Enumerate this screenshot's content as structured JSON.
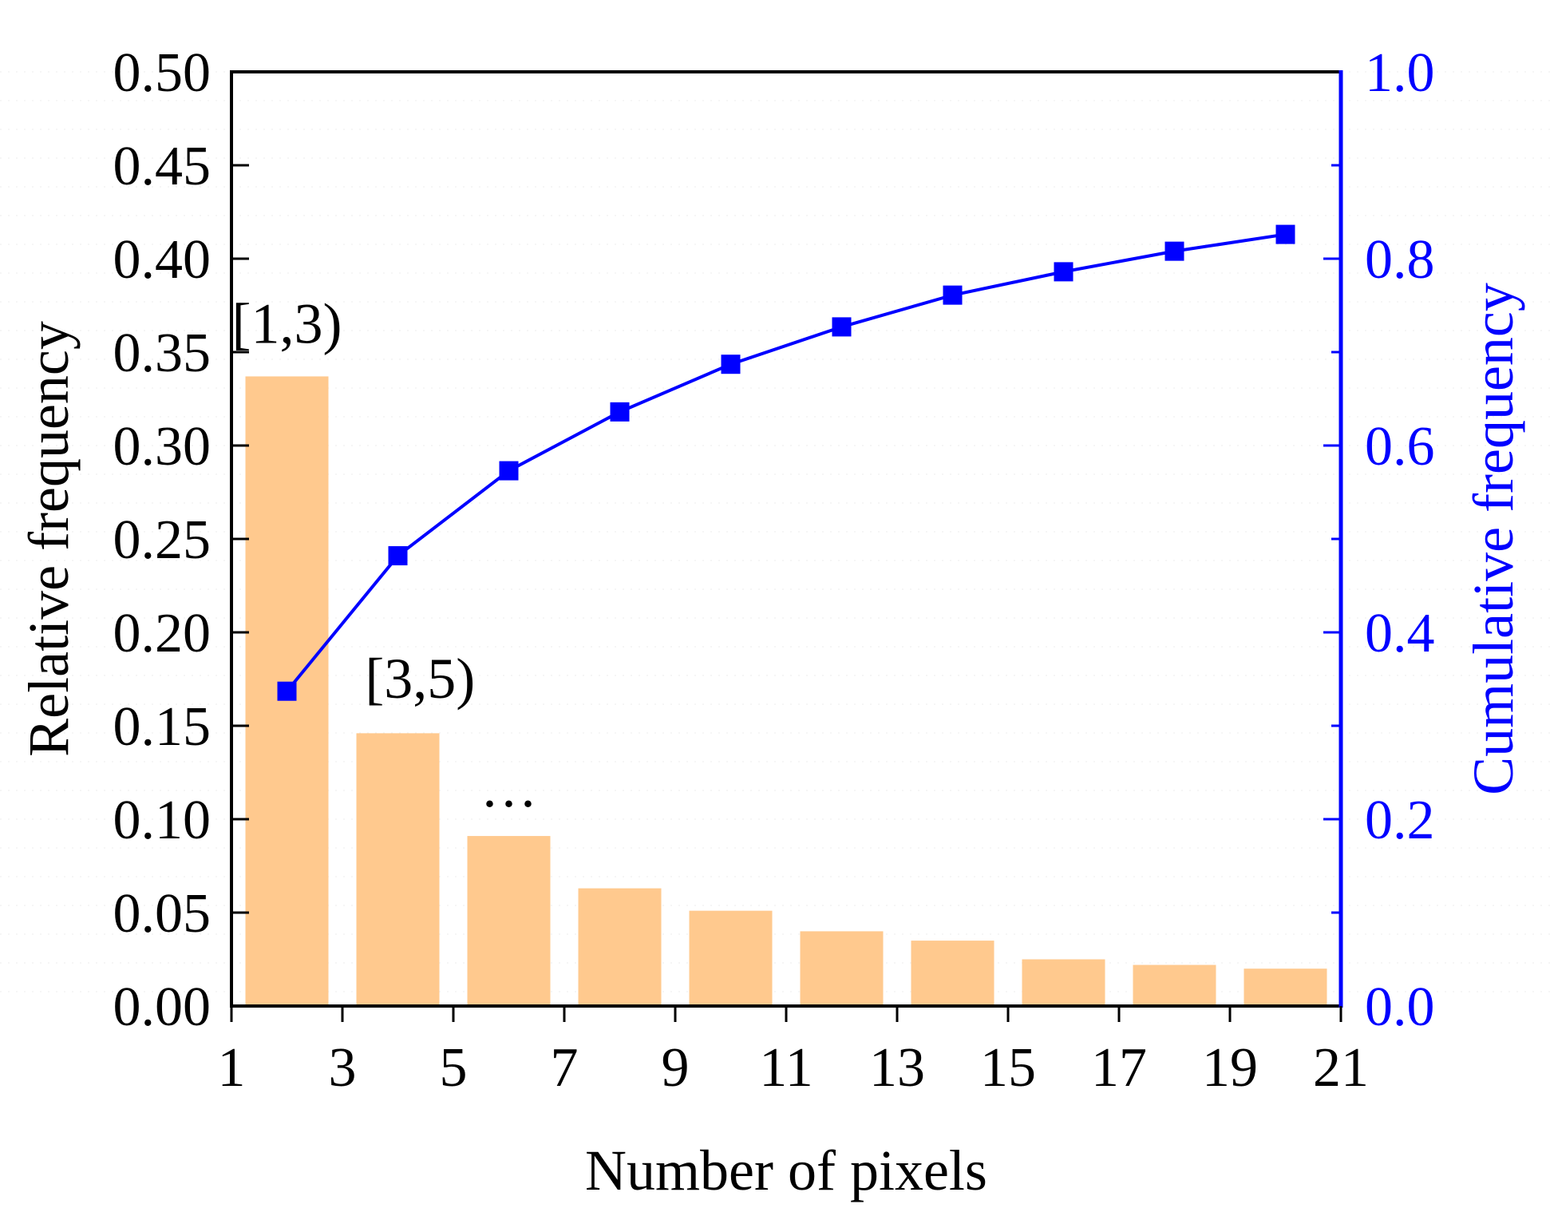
{
  "chart_data": {
    "type": "bar+line",
    "xlabel": "Number of pixels",
    "ylabel": "Relative frequency",
    "y2label": "Cumulative frequency",
    "xlim": [
      1,
      21
    ],
    "ylim": [
      0,
      0.5
    ],
    "y2lim": [
      0,
      1.0
    ],
    "xticks": [
      "1",
      "3",
      "5",
      "7",
      "9",
      "11",
      "13",
      "15",
      "17",
      "19",
      "21"
    ],
    "yticks": [
      "0.00",
      "0.05",
      "0.10",
      "0.15",
      "0.20",
      "0.25",
      "0.30",
      "0.35",
      "0.40",
      "0.45",
      "0.50"
    ],
    "y2ticks": [
      "0.0",
      "0.2",
      "0.4",
      "0.6",
      "0.8",
      "1.0"
    ],
    "bars": {
      "name": "Relative frequency",
      "x": [
        2,
        4,
        6,
        8,
        10,
        12,
        14,
        16,
        18,
        20
      ],
      "values": [
        0.337,
        0.146,
        0.091,
        0.063,
        0.051,
        0.04,
        0.035,
        0.025,
        0.022,
        0.02
      ],
      "color": "#FFC98E"
    },
    "line": {
      "name": "Cumulative frequency",
      "x": [
        2,
        4,
        6,
        8,
        10,
        12,
        14,
        16,
        18,
        20
      ],
      "values": [
        0.337,
        0.482,
        0.573,
        0.636,
        0.687,
        0.727,
        0.761,
        0.786,
        0.808,
        0.826
      ],
      "color": "#0000FF"
    },
    "annotations": [
      {
        "text": "[1,3)",
        "x": 2,
        "y": 0.355
      },
      {
        "text": "[3,5)",
        "x": 4.4,
        "y": 0.165
      },
      {
        "text": "···",
        "x": 6,
        "y": 0.098
      }
    ],
    "left_axis_color": "#000000",
    "right_axis_color": "#0000FF"
  }
}
